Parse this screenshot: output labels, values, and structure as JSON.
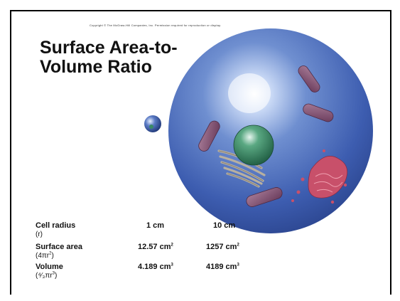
{
  "copyright": "Copyright © The McGraw-Hill Companies, Inc. Permission required for reproduction or display.",
  "title": {
    "line1": "Surface Area-to-",
    "line2": "Volume Ratio"
  },
  "table": {
    "columns": [
      "1 cm",
      "10 cm"
    ],
    "rows": [
      {
        "label": "Cell radius",
        "sub": "(r)",
        "small": "",
        "large": ""
      },
      {
        "label": "Surface area",
        "sub": "(4πr",
        "sub_exp": "2",
        "sub_end": ")",
        "small": "12.57 cm",
        "small_exp": "2",
        "large": "1257 cm",
        "large_exp": "2"
      },
      {
        "label": "Volume",
        "sub": "(",
        "sub_frac": "⁴⁄₃",
        "sub_mid": "πr",
        "sub_exp": "3",
        "sub_end": ")",
        "small": "4.189 cm",
        "small_exp": "3",
        "large": "4189 cm",
        "large_exp": "3"
      }
    ]
  },
  "colors": {
    "cell_blue": "#3a5aa8",
    "nucleus_green": "#2f7d5c",
    "mitochondria": "#8a5a7a",
    "er_red": "#c0506a"
  }
}
